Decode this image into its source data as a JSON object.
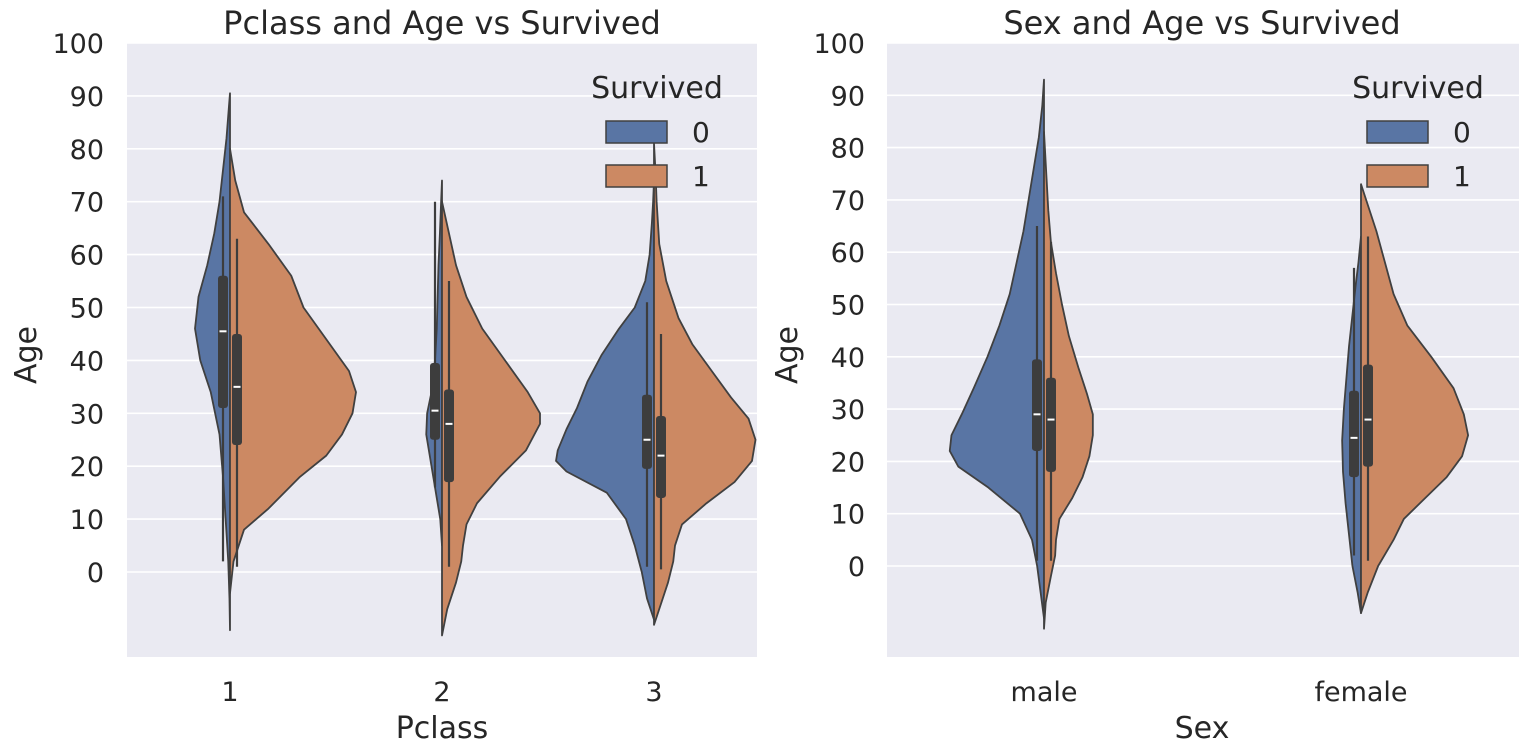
{
  "colors": {
    "survived_0": "#5975a4",
    "survived_1": "#cc8963",
    "panel_bg": "#eaeaf2",
    "grid": "#ffffff",
    "outline": "#404040"
  },
  "chart_data": [
    {
      "type": "violin",
      "split": true,
      "title": "Pclass and Age vs Survived",
      "xlabel": "Pclass",
      "ylabel": "Age",
      "categories": [
        "1",
        "2",
        "3"
      ],
      "yticks": [
        "0",
        "10",
        "20",
        "30",
        "40",
        "50",
        "60",
        "70",
        "80",
        "90",
        "100"
      ],
      "ylim": [
        -16,
        100
      ],
      "grid": true,
      "legend": {
        "title": "Survived",
        "placement": "top-right",
        "entries": [
          "0",
          "1"
        ]
      },
      "series": [
        {
          "name": "0",
          "violins": [
            {
              "category": "1",
              "ymin": -11,
              "ymax": 90.5,
              "density": [
                [
                  -11,
                  0
                ],
                [
                  -5,
                  0.3
                ],
                [
                  2,
                  1
                ],
                [
                  10,
                  2.5
                ],
                [
                  18,
                  4
                ],
                [
                  26,
                  6
                ],
                [
                  34,
                  11
                ],
                [
                  40,
                  17
                ],
                [
                  46,
                  20
                ],
                [
                  52,
                  18
                ],
                [
                  58,
                  13
                ],
                [
                  64,
                  9
                ],
                [
                  70,
                  6
                ],
                [
                  76,
                  4
                ],
                [
                  82,
                  2
                ],
                [
                  88,
                  0.6
                ],
                [
                  90.5,
                  0
                ]
              ],
              "whisker": [
                2,
                71
              ],
              "q1": 31,
              "median": 45.5,
              "q3": 56
            },
            {
              "category": "2",
              "ymin": 5,
              "ymax": 74,
              "density": [
                [
                  5,
                  0
                ],
                [
                  10,
                  1
                ],
                [
                  14,
                  3
                ],
                [
                  18,
                  5
                ],
                [
                  22,
                  7
                ],
                [
                  26,
                  9
                ],
                [
                  30,
                  8.5
                ],
                [
                  34,
                  6
                ],
                [
                  40,
                  4
                ],
                [
                  46,
                  3
                ],
                [
                  52,
                  2.5
                ],
                [
                  58,
                  2
                ],
                [
                  64,
                  1.2
                ],
                [
                  70,
                  0.5
                ],
                [
                  74,
                  0
                ]
              ],
              "whisker": [
                16,
                70
              ],
              "q1": 25,
              "median": 30.5,
              "q3": 39.5
            },
            {
              "category": "3",
              "ymin": -9,
              "ymax": 74,
              "density": [
                [
                  -9,
                  0
                ],
                [
                  -5,
                  4
                ],
                [
                  0,
                  7
                ],
                [
                  5,
                  11
                ],
                [
                  10,
                  16
                ],
                [
                  15,
                  27
                ],
                [
                  19,
                  50
                ],
                [
                  21,
                  56
                ],
                [
                  23,
                  55
                ],
                [
                  27,
                  50
                ],
                [
                  31,
                  44
                ],
                [
                  36,
                  38
                ],
                [
                  41,
                  30
                ],
                [
                  46,
                  20
                ],
                [
                  50,
                  11
                ],
                [
                  55,
                  5
                ],
                [
                  60,
                  2.5
                ],
                [
                  66,
                  1.2
                ],
                [
                  70,
                  0.5
                ],
                [
                  74,
                  0
                ]
              ],
              "whisker": [
                1,
                51
              ],
              "q1": 19.5,
              "median": 25,
              "q3": 33.5
            }
          ]
        },
        {
          "name": "1",
          "violins": [
            {
              "category": "1",
              "ymin": -4,
              "ymax": 80,
              "density": [
                [
                  -4,
                  0
                ],
                [
                  2,
                  2
                ],
                [
                  8,
                  8
                ],
                [
                  12,
                  22
                ],
                [
                  18,
                  40
                ],
                [
                  22,
                  55
                ],
                [
                  26,
                  64
                ],
                [
                  30,
                  70
                ],
                [
                  34,
                  72
                ],
                [
                  38,
                  68
                ],
                [
                  44,
                  55
                ],
                [
                  50,
                  42
                ],
                [
                  56,
                  35
                ],
                [
                  62,
                  22
                ],
                [
                  68,
                  8
                ],
                [
                  74,
                  3
                ],
                [
                  80,
                  0
                ]
              ],
              "whisker": [
                1,
                63
              ],
              "q1": 24,
              "median": 35,
              "q3": 45
            },
            {
              "category": "2",
              "ymin": -12,
              "ymax": 70,
              "density": [
                [
                  -12,
                  0
                ],
                [
                  -7,
                  3
                ],
                [
                  -2,
                  8
                ],
                [
                  2,
                  11
                ],
                [
                  5,
                  12
                ],
                [
                  9,
                  14
                ],
                [
                  13,
                  20
                ],
                [
                  18,
                  33
                ],
                [
                  23,
                  48
                ],
                [
                  28,
                  56
                ],
                [
                  30,
                  56
                ],
                [
                  34,
                  49
                ],
                [
                  40,
                  36
                ],
                [
                  46,
                  23
                ],
                [
                  52,
                  14
                ],
                [
                  58,
                  8
                ],
                [
                  64,
                  4
                ],
                [
                  70,
                  0
                ]
              ],
              "whisker": [
                1,
                55
              ],
              "q1": 17,
              "median": 28,
              "q3": 34.5
            },
            {
              "category": "3",
              "ymin": -10,
              "ymax": 81,
              "density": [
                [
                  -10,
                  0
                ],
                [
                  -6,
                  4
                ],
                [
                  -2,
                  8
                ],
                [
                  2,
                  11
                ],
                [
                  5,
                  12
                ],
                [
                  9,
                  16
                ],
                [
                  13,
                  30
                ],
                [
                  17,
                  46
                ],
                [
                  21,
                  56
                ],
                [
                  25,
                  58
                ],
                [
                  29,
                  54
                ],
                [
                  33,
                  44
                ],
                [
                  38,
                  33
                ],
                [
                  43,
                  22
                ],
                [
                  48,
                  14
                ],
                [
                  55,
                  7
                ],
                [
                  62,
                  3
                ],
                [
                  70,
                  1.5
                ],
                [
                  76,
                  0.8
                ],
                [
                  81,
                  0
                ]
              ],
              "whisker": [
                0.5,
                45
              ],
              "q1": 14,
              "median": 22,
              "q3": 29.5
            }
          ]
        }
      ]
    },
    {
      "type": "violin",
      "split": true,
      "title": "Sex and Age vs Survived",
      "xlabel": "Sex",
      "ylabel": "Age",
      "categories": [
        "male",
        "female"
      ],
      "yticks": [
        "0",
        "10",
        "20",
        "30",
        "40",
        "50",
        "60",
        "70",
        "80",
        "90",
        "100"
      ],
      "ylim": [
        -17,
        100
      ],
      "grid": true,
      "legend": {
        "title": "Survived",
        "placement": "top-right",
        "entries": [
          "0",
          "1"
        ]
      },
      "series": [
        {
          "name": "0",
          "violins": [
            {
              "category": "male",
              "ymin": -10,
              "ymax": 93,
              "density": [
                [
                  -10,
                  0
                ],
                [
                  -5,
                  4
                ],
                [
                  0,
                  8
                ],
                [
                  5,
                  14
                ],
                [
                  10,
                  28
                ],
                [
                  15,
                  65
                ],
                [
                  19,
                  100
                ],
                [
                  22,
                  110
                ],
                [
                  25,
                  108
                ],
                [
                  29,
                  96
                ],
                [
                  34,
                  82
                ],
                [
                  40,
                  66
                ],
                [
                  46,
                  52
                ],
                [
                  52,
                  40
                ],
                [
                  58,
                  32
                ],
                [
                  64,
                  24
                ],
                [
                  70,
                  18
                ],
                [
                  76,
                  12
                ],
                [
                  82,
                  6
                ],
                [
                  88,
                  2
                ],
                [
                  93,
                  0
                ]
              ],
              "whisker": [
                1,
                65
              ],
              "q1": 22,
              "median": 29,
              "q3": 39.5
            },
            {
              "category": "female",
              "ymin": -9,
              "ymax": 63,
              "density": [
                [
                  -9,
                  0
                ],
                [
                  -5,
                  4
                ],
                [
                  0,
                  10
                ],
                [
                  6,
                  14
                ],
                [
                  12,
                  18
                ],
                [
                  18,
                  21
                ],
                [
                  24,
                  22
                ],
                [
                  30,
                  20
                ],
                [
                  36,
                  17
                ],
                [
                  42,
                  14
                ],
                [
                  48,
                  10
                ],
                [
                  54,
                  6
                ],
                [
                  58,
                  3
                ],
                [
                  63,
                  0
                ]
              ],
              "whisker": [
                2,
                57
              ],
              "q1": 17,
              "median": 24.5,
              "q3": 33.5
            }
          ]
        },
        {
          "name": "1",
          "violins": [
            {
              "category": "male",
              "ymin": -12,
              "ymax": 83,
              "density": [
                [
                  -12,
                  0
                ],
                [
                  -7,
                  2
                ],
                [
                  -2,
                  8
                ],
                [
                  2,
                  13
                ],
                [
                  5,
                  14
                ],
                [
                  9,
                  18
                ],
                [
                  13,
                  33
                ],
                [
                  17,
                  45
                ],
                [
                  21,
                  53
                ],
                [
                  25,
                  57
                ],
                [
                  29,
                  57
                ],
                [
                  33,
                  50
                ],
                [
                  38,
                  40
                ],
                [
                  44,
                  29
                ],
                [
                  50,
                  21
                ],
                [
                  56,
                  14
                ],
                [
                  62,
                  8
                ],
                [
                  68,
                  5
                ],
                [
                  74,
                  3
                ],
                [
                  80,
                  1
                ],
                [
                  83,
                  0
                ]
              ],
              "whisker": [
                1,
                62
              ],
              "q1": 18,
              "median": 28,
              "q3": 36
            },
            {
              "category": "female",
              "ymin": -9,
              "ymax": 73,
              "density": [
                [
                  -9,
                  0
                ],
                [
                  -5,
                  8
                ],
                [
                  0,
                  20
                ],
                [
                  5,
                  38
                ],
                [
                  9,
                  50
                ],
                [
                  13,
                  75
                ],
                [
                  17,
                  100
                ],
                [
                  21,
                  118
                ],
                [
                  25,
                  125
                ],
                [
                  29,
                  120
                ],
                [
                  34,
                  108
                ],
                [
                  40,
                  82
                ],
                [
                  46,
                  54
                ],
                [
                  52,
                  38
                ],
                [
                  58,
                  28
                ],
                [
                  64,
                  18
                ],
                [
                  70,
                  6
                ],
                [
                  73,
                  0
                ]
              ],
              "whisker": [
                1,
                63
              ],
              "q1": 19,
              "median": 28,
              "q3": 38.5
            }
          ]
        }
      ]
    }
  ]
}
